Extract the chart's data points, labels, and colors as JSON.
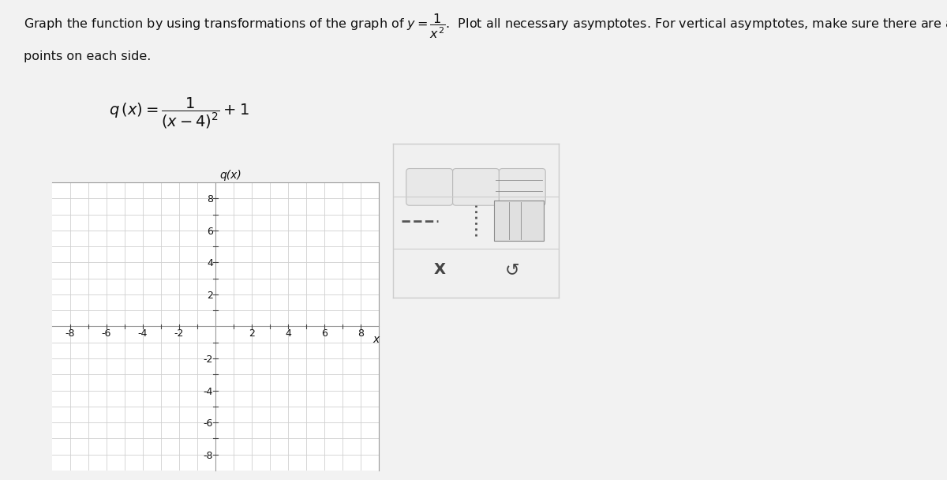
{
  "ylabel": "q(x)",
  "xlabel": "x",
  "xlim": [
    -9,
    9
  ],
  "ylim": [
    -9,
    9
  ],
  "grid_color": "#d0d0d0",
  "axis_color": "#444444",
  "bg_color": "#ffffff",
  "plot_bg_color": "#ffffff",
  "outer_bg_color": "#f2f2f2",
  "border_color": "#999999",
  "text_color": "#111111",
  "title_fontsize": 11.5,
  "function_fontsize": 13,
  "tick_fontsize": 9,
  "axis_label_fontsize": 10,
  "toolbar_bg": "#f0f0f0",
  "toolbar_border": "#cccccc"
}
